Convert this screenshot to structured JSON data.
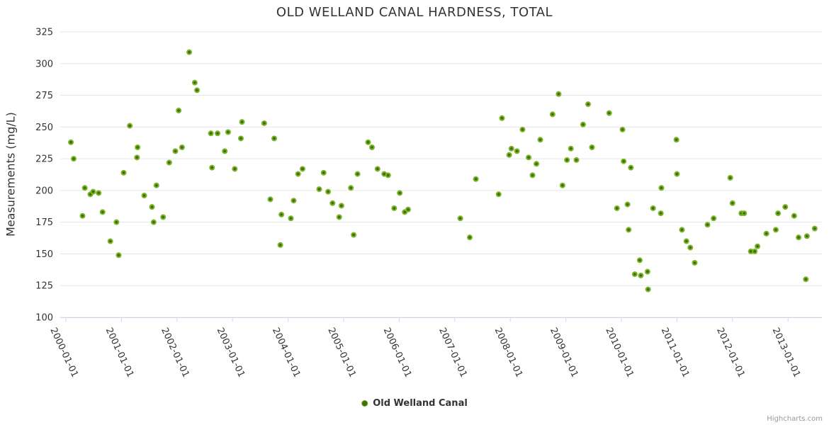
{
  "chart_data": {
    "type": "scatter",
    "title": "OLD WELLAND CANAL HARDNESS, TOTAL",
    "ylabel": "Measurements (mg/L)",
    "xlabel": "",
    "ylim": [
      100,
      325
    ],
    "y_ticks": [
      325,
      300,
      275,
      250,
      225,
      200,
      175,
      150,
      125,
      100
    ],
    "x_tick_years": [
      2000,
      2001,
      2002,
      2003,
      2004,
      2005,
      2006,
      2007,
      2008,
      2009,
      2010,
      2011,
      2012,
      2013
    ],
    "x_tick_labels": [
      "2000-01-01",
      "2001-01-01",
      "2002-01-01",
      "2003-01-01",
      "2004-01-01",
      "2005-01-01",
      "2006-01-01",
      "2007-01-01",
      "2008-01-01",
      "2009-01-01",
      "2010-01-01",
      "2011-01-01",
      "2012-01-01",
      "2013-01-01"
    ],
    "xlim_years": [
      1999.9,
      2013.62
    ],
    "grid": "horizontal-only",
    "legend_position": "bottom-center",
    "credits": "Highcharts.com",
    "series": [
      {
        "name": "Old Welland Canal",
        "marker_outer_color": "#7cb32b",
        "marker_inner_color": "#3d6d05",
        "points": [
          [
            2000.09,
            238
          ],
          [
            2000.14,
            225
          ],
          [
            2000.3,
            180
          ],
          [
            2000.34,
            202
          ],
          [
            2000.44,
            197
          ],
          [
            2000.49,
            199
          ],
          [
            2000.59,
            198
          ],
          [
            2000.66,
            183
          ],
          [
            2000.8,
            160
          ],
          [
            2000.91,
            175
          ],
          [
            2000.95,
            149
          ],
          [
            2001.04,
            214
          ],
          [
            2001.15,
            251
          ],
          [
            2001.28,
            226
          ],
          [
            2001.29,
            234
          ],
          [
            2001.41,
            196
          ],
          [
            2001.55,
            187
          ],
          [
            2001.58,
            175
          ],
          [
            2001.63,
            204
          ],
          [
            2001.75,
            179
          ],
          [
            2001.86,
            222
          ],
          [
            2001.97,
            231
          ],
          [
            2002.03,
            263
          ],
          [
            2002.09,
            234
          ],
          [
            2002.22,
            309
          ],
          [
            2002.32,
            285
          ],
          [
            2002.36,
            279
          ],
          [
            2002.61,
            245
          ],
          [
            2002.63,
            218
          ],
          [
            2002.73,
            245
          ],
          [
            2002.86,
            231
          ],
          [
            2002.92,
            246
          ],
          [
            2003.04,
            217
          ],
          [
            2003.15,
            241
          ],
          [
            2003.17,
            254
          ],
          [
            2003.57,
            253
          ],
          [
            2003.68,
            193
          ],
          [
            2003.75,
            241
          ],
          [
            2003.86,
            157
          ],
          [
            2003.88,
            181
          ],
          [
            2004.05,
            178
          ],
          [
            2004.1,
            192
          ],
          [
            2004.18,
            213
          ],
          [
            2004.26,
            217
          ],
          [
            2004.56,
            201
          ],
          [
            2004.64,
            214
          ],
          [
            2004.72,
            199
          ],
          [
            2004.8,
            190
          ],
          [
            2004.92,
            179
          ],
          [
            2004.96,
            188
          ],
          [
            2005.13,
            202
          ],
          [
            2005.18,
            165
          ],
          [
            2005.25,
            213
          ],
          [
            2005.44,
            238
          ],
          [
            2005.51,
            234
          ],
          [
            2005.61,
            217
          ],
          [
            2005.73,
            213
          ],
          [
            2005.8,
            212
          ],
          [
            2005.91,
            186
          ],
          [
            2006.01,
            198
          ],
          [
            2006.1,
            183
          ],
          [
            2006.16,
            185
          ],
          [
            2007.1,
            178
          ],
          [
            2007.27,
            163
          ],
          [
            2007.38,
            209
          ],
          [
            2007.79,
            197
          ],
          [
            2007.85,
            257
          ],
          [
            2007.98,
            228
          ],
          [
            2008.02,
            233
          ],
          [
            2008.12,
            231
          ],
          [
            2008.22,
            248
          ],
          [
            2008.33,
            226
          ],
          [
            2008.4,
            212
          ],
          [
            2008.47,
            221
          ],
          [
            2008.54,
            240
          ],
          [
            2008.76,
            260
          ],
          [
            2008.87,
            276
          ],
          [
            2008.94,
            204
          ],
          [
            2009.02,
            224
          ],
          [
            2009.09,
            233
          ],
          [
            2009.19,
            224
          ],
          [
            2009.31,
            252
          ],
          [
            2009.4,
            268
          ],
          [
            2009.47,
            234
          ],
          [
            2009.78,
            261
          ],
          [
            2009.92,
            186
          ],
          [
            2010.02,
            248
          ],
          [
            2010.04,
            223
          ],
          [
            2010.11,
            189
          ],
          [
            2010.13,
            169
          ],
          [
            2010.17,
            218
          ],
          [
            2010.24,
            134
          ],
          [
            2010.33,
            145
          ],
          [
            2010.35,
            133
          ],
          [
            2010.47,
            136
          ],
          [
            2010.48,
            122
          ],
          [
            2010.57,
            186
          ],
          [
            2010.71,
            182
          ],
          [
            2010.72,
            202
          ],
          [
            2010.99,
            240
          ],
          [
            2011.0,
            213
          ],
          [
            2011.09,
            169
          ],
          [
            2011.17,
            160
          ],
          [
            2011.24,
            155
          ],
          [
            2011.32,
            143
          ],
          [
            2011.55,
            173
          ],
          [
            2011.66,
            178
          ],
          [
            2011.96,
            210
          ],
          [
            2012.0,
            190
          ],
          [
            2012.16,
            182
          ],
          [
            2012.21,
            182
          ],
          [
            2012.33,
            152
          ],
          [
            2012.4,
            152
          ],
          [
            2012.45,
            156
          ],
          [
            2012.61,
            166
          ],
          [
            2012.78,
            169
          ],
          [
            2012.82,
            182
          ],
          [
            2012.95,
            187
          ],
          [
            2013.11,
            180
          ],
          [
            2013.19,
            163
          ],
          [
            2013.32,
            130
          ],
          [
            2013.34,
            164
          ],
          [
            2013.48,
            170
          ]
        ]
      }
    ]
  },
  "colors": {
    "background": "#ffffff",
    "grid_line": "#e6e6e6",
    "axis_line": "#ccd6eb",
    "tick_label": "#333333",
    "title_text": "#333333",
    "credits_text": "#999999"
  }
}
